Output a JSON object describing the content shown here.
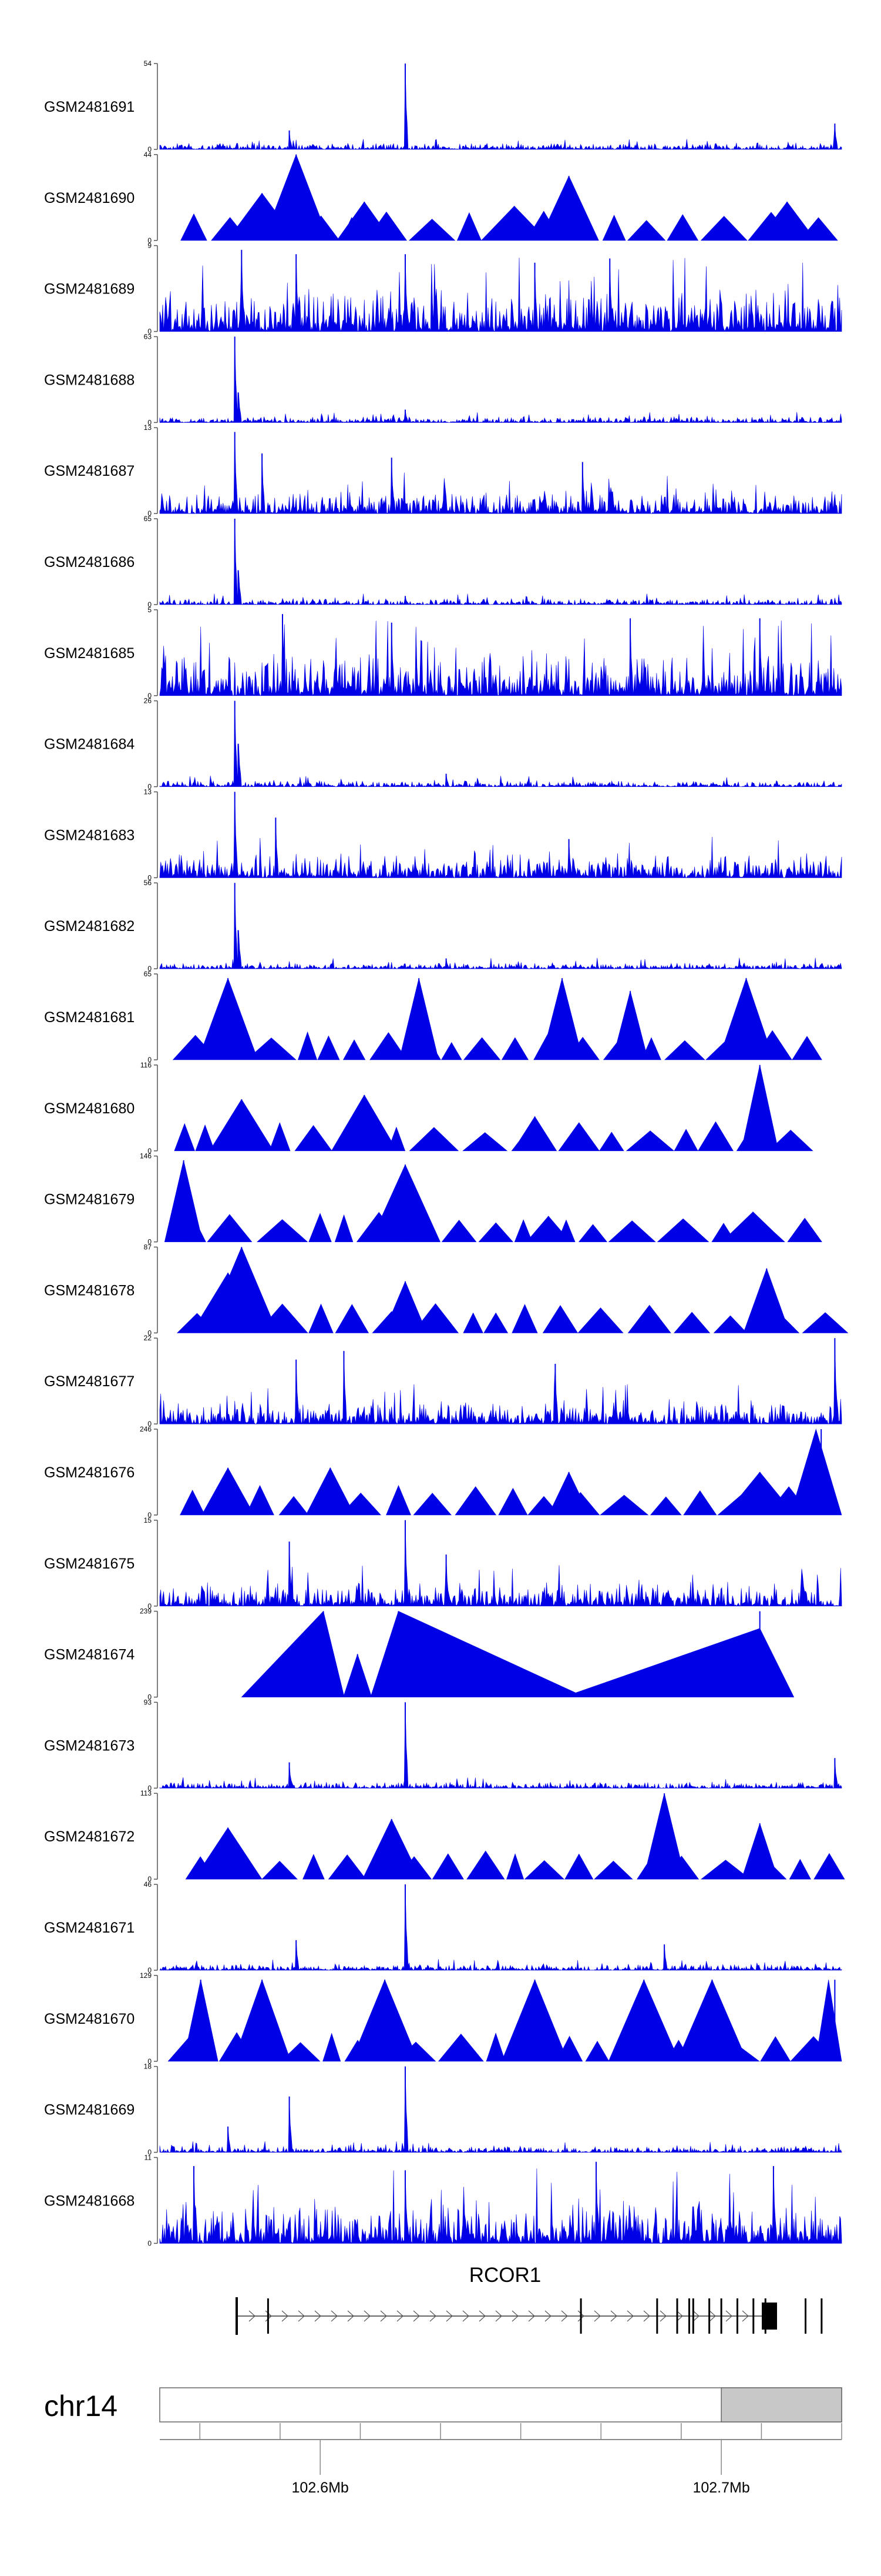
{
  "chart_data": {
    "type": "area",
    "title": "",
    "chromosome": "chr14",
    "gene": {
      "name": "RCOR1",
      "exons": [
        102.587,
        102.665,
        102.684,
        102.689,
        102.692,
        102.693,
        102.697,
        102.7,
        102.704,
        102.708,
        102.711,
        102.721,
        102.725
      ]
    },
    "xaxis": {
      "unit": "Mb",
      "range": [
        102.56,
        102.73
      ],
      "ticks": [
        102.6,
        102.7
      ],
      "tick_labels": [
        "102.6Mb",
        "102.7Mb"
      ],
      "highlighted_region": [
        102.7,
        102.73
      ]
    },
    "colors": {
      "signal": "#0000e6",
      "axis": "#555555",
      "ideogram_fill": "#c8c8c8"
    },
    "tracks": [
      {
        "name": "GSM2481691",
        "ymax": 54,
        "style": "dense",
        "peaks": [
          [
            0.36,
            1.0
          ],
          [
            0.19,
            0.22
          ],
          [
            0.99,
            0.3
          ]
        ]
      },
      {
        "name": "GSM2481690",
        "ymax": 44,
        "style": "tri",
        "peaks": [
          [
            0.2,
            1.0
          ],
          [
            0.15,
            0.55
          ],
          [
            0.3,
            0.45
          ],
          [
            0.6,
            0.75
          ],
          [
            0.52,
            0.4
          ],
          [
            0.92,
            0.45
          ]
        ]
      },
      {
        "name": "GSM2481689",
        "ymax": 9,
        "style": "dense-high",
        "peaks": [
          [
            0.36,
            0.9
          ],
          [
            0.12,
            0.95
          ],
          [
            0.2,
            0.9
          ],
          [
            0.55,
            0.8
          ],
          [
            0.66,
            0.85
          ]
        ]
      },
      {
        "name": "GSM2481688",
        "ymax": 63,
        "style": "dense",
        "peaks": [
          [
            0.11,
            1.0
          ],
          [
            0.115,
            0.35
          ],
          [
            0.36,
            0.15
          ]
        ]
      },
      {
        "name": "GSM2481687",
        "ymax": 13,
        "style": "dense-mid",
        "peaks": [
          [
            0.11,
            0.95
          ],
          [
            0.15,
            0.7
          ],
          [
            0.34,
            0.65
          ],
          [
            0.62,
            0.6
          ]
        ]
      },
      {
        "name": "GSM2481686",
        "ymax": 65,
        "style": "dense",
        "peaks": [
          [
            0.11,
            1.0
          ],
          [
            0.115,
            0.4
          ],
          [
            0.36,
            0.1
          ]
        ]
      },
      {
        "name": "GSM2481685",
        "ymax": 5,
        "style": "dense-high",
        "peaks": [
          [
            0.18,
            0.95
          ],
          [
            0.34,
            0.85
          ],
          [
            0.69,
            0.9
          ],
          [
            0.88,
            0.9
          ]
        ]
      },
      {
        "name": "GSM2481684",
        "ymax": 26,
        "style": "dense",
        "peaks": [
          [
            0.11,
            1.0
          ],
          [
            0.115,
            0.5
          ],
          [
            0.42,
            0.15
          ]
        ]
      },
      {
        "name": "GSM2481683",
        "ymax": 13,
        "style": "dense-mid",
        "peaks": [
          [
            0.11,
            1.0
          ],
          [
            0.17,
            0.7
          ],
          [
            0.6,
            0.45
          ]
        ]
      },
      {
        "name": "GSM2481682",
        "ymax": 56,
        "style": "dense",
        "peaks": [
          [
            0.11,
            1.0
          ],
          [
            0.115,
            0.45
          ],
          [
            0.42,
            0.12
          ]
        ]
      },
      {
        "name": "GSM2481681",
        "ymax": 65,
        "style": "tri",
        "peaks": [
          [
            0.1,
            0.95
          ],
          [
            0.38,
            0.95
          ],
          [
            0.59,
            0.95
          ],
          [
            0.86,
            0.95
          ],
          [
            0.69,
            0.8
          ]
        ]
      },
      {
        "name": "GSM2481680",
        "ymax": 116,
        "style": "tri",
        "peaks": [
          [
            0.88,
            1.0
          ],
          [
            0.12,
            0.6
          ],
          [
            0.3,
            0.65
          ],
          [
            0.55,
            0.4
          ]
        ]
      },
      {
        "name": "GSM2481679",
        "ymax": 146,
        "style": "tri",
        "peaks": [
          [
            0.035,
            0.95
          ],
          [
            0.36,
            0.9
          ],
          [
            0.87,
            0.35
          ],
          [
            0.57,
            0.3
          ]
        ]
      },
      {
        "name": "GSM2481678",
        "ymax": 87,
        "style": "tri",
        "peaks": [
          [
            0.12,
            1.0
          ],
          [
            0.89,
            0.75
          ],
          [
            0.36,
            0.6
          ],
          [
            0.1,
            0.7
          ]
        ]
      },
      {
        "name": "GSM2481677",
        "ymax": 22,
        "style": "dense-mid",
        "peaks": [
          [
            0.27,
            0.85
          ],
          [
            0.2,
            0.75
          ],
          [
            0.58,
            0.7
          ],
          [
            0.99,
            1.0
          ]
        ]
      },
      {
        "name": "GSM2481676",
        "ymax": 246,
        "style": "tri",
        "peaks": [
          [
            0.97,
            1.0
          ],
          [
            0.1,
            0.55
          ],
          [
            0.25,
            0.55
          ],
          [
            0.6,
            0.5
          ],
          [
            0.88,
            0.5
          ]
        ]
      },
      {
        "name": "GSM2481675",
        "ymax": 15,
        "style": "dense-mid",
        "peaks": [
          [
            0.36,
            1.0
          ],
          [
            0.19,
            0.75
          ],
          [
            0.42,
            0.6
          ]
        ]
      },
      {
        "name": "GSM2481674",
        "ymax": 239,
        "style": "big-tri",
        "peaks": [
          [
            0.24,
            1.0
          ],
          [
            0.29,
            0.5
          ],
          [
            0.35,
            1.0
          ],
          [
            0.61,
            0.05
          ],
          [
            0.88,
            1.0
          ]
        ]
      },
      {
        "name": "GSM2481673",
        "ymax": 93,
        "style": "dense",
        "peaks": [
          [
            0.36,
            1.0
          ],
          [
            0.19,
            0.3
          ],
          [
            0.99,
            0.35
          ]
        ]
      },
      {
        "name": "GSM2481672",
        "ymax": 113,
        "style": "tri",
        "peaks": [
          [
            0.74,
            1.0
          ],
          [
            0.1,
            0.6
          ],
          [
            0.34,
            0.7
          ],
          [
            0.88,
            0.65
          ]
        ]
      },
      {
        "name": "GSM2481671",
        "ymax": 46,
        "style": "dense",
        "peaks": [
          [
            0.36,
            1.0
          ],
          [
            0.2,
            0.35
          ],
          [
            0.74,
            0.3
          ]
        ]
      },
      {
        "name": "GSM2481670",
        "ymax": 129,
        "style": "tri",
        "peaks": [
          [
            0.06,
            0.95
          ],
          [
            0.15,
            0.95
          ],
          [
            0.33,
            0.95
          ],
          [
            0.55,
            0.95
          ],
          [
            0.71,
            0.95
          ],
          [
            0.81,
            0.95
          ],
          [
            0.99,
            0.95
          ]
        ]
      },
      {
        "name": "GSM2481669",
        "ymax": 18,
        "style": "dense",
        "peaks": [
          [
            0.36,
            1.0
          ],
          [
            0.19,
            0.65
          ],
          [
            0.1,
            0.3
          ]
        ]
      },
      {
        "name": "GSM2481668",
        "ymax": 11,
        "style": "dense-high",
        "peaks": [
          [
            0.05,
            0.9
          ],
          [
            0.36,
            0.85
          ],
          [
            0.64,
            0.95
          ],
          [
            0.9,
            0.9
          ]
        ]
      }
    ]
  }
}
